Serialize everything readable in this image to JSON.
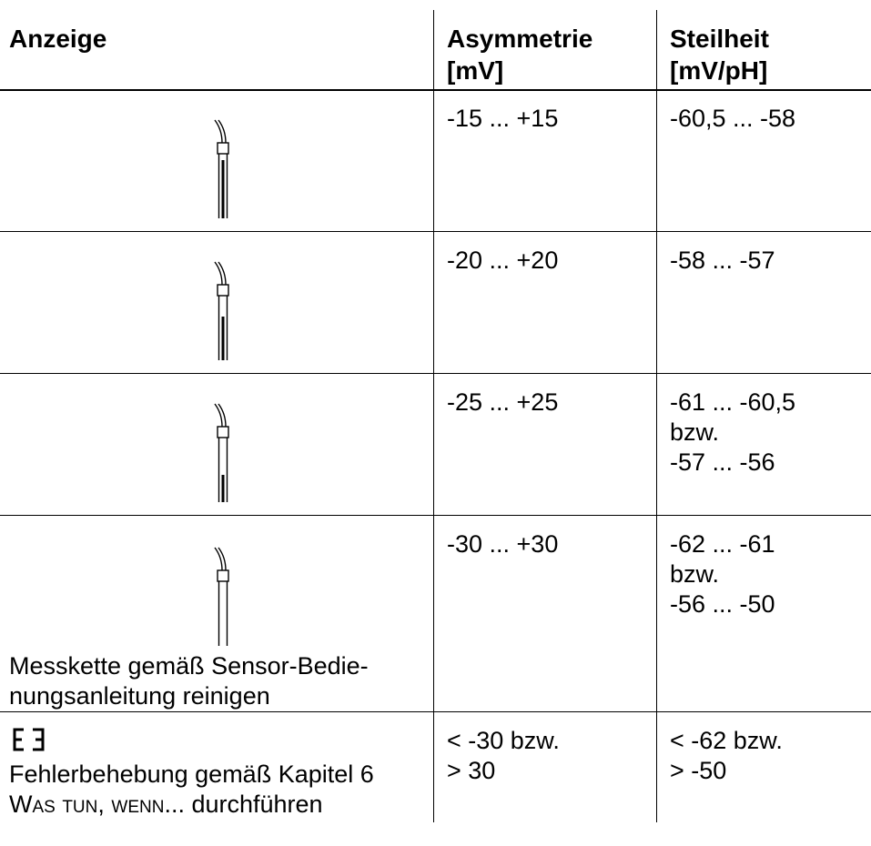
{
  "header": {
    "col1": "Anzeige",
    "col2_line1": "Asymmetrie",
    "col2_line2": "[mV]",
    "col3_line1": "Steilheit",
    "col3_line2": "[mV/pH]"
  },
  "rows": [
    {
      "display_icon": "electrode-icon-4-segments",
      "asymmetry": "-15 ... +15",
      "slope_lines": [
        "-60,5 ... -58"
      ]
    },
    {
      "display_icon": "electrode-icon-3-segments",
      "asymmetry": "-20 ... +20",
      "slope_lines": [
        "-58 ... -57"
      ]
    },
    {
      "display_icon": "electrode-icon-2-segments",
      "asymmetry": "-25 ... +25",
      "slope_lines": [
        "-61 ... -60,5",
        "bzw.",
        "-57 ... -56"
      ]
    },
    {
      "display_icon": "electrode-icon-1-segment",
      "note_lines": [
        "Messkette gemäß Sensor-Bedie-",
        "nungsanleitung reinigen"
      ],
      "asymmetry": "-30 ... +30",
      "slope_lines": [
        "-62 ... -61",
        "bzw.",
        "-56 ... -50"
      ]
    },
    {
      "display_icon": "error-e3-display",
      "error_code": "E3",
      "note_line1": "Fehlerbehebung gemäß Kapitel 6",
      "note_line2_caps": "Was tun, wenn",
      "note_line2_rest": "... durchführen",
      "asymmetry_lines": [
        "< -30 bzw.",
        "> 30"
      ],
      "slope_lines": [
        "< -62 bzw.",
        "> -50"
      ]
    }
  ]
}
